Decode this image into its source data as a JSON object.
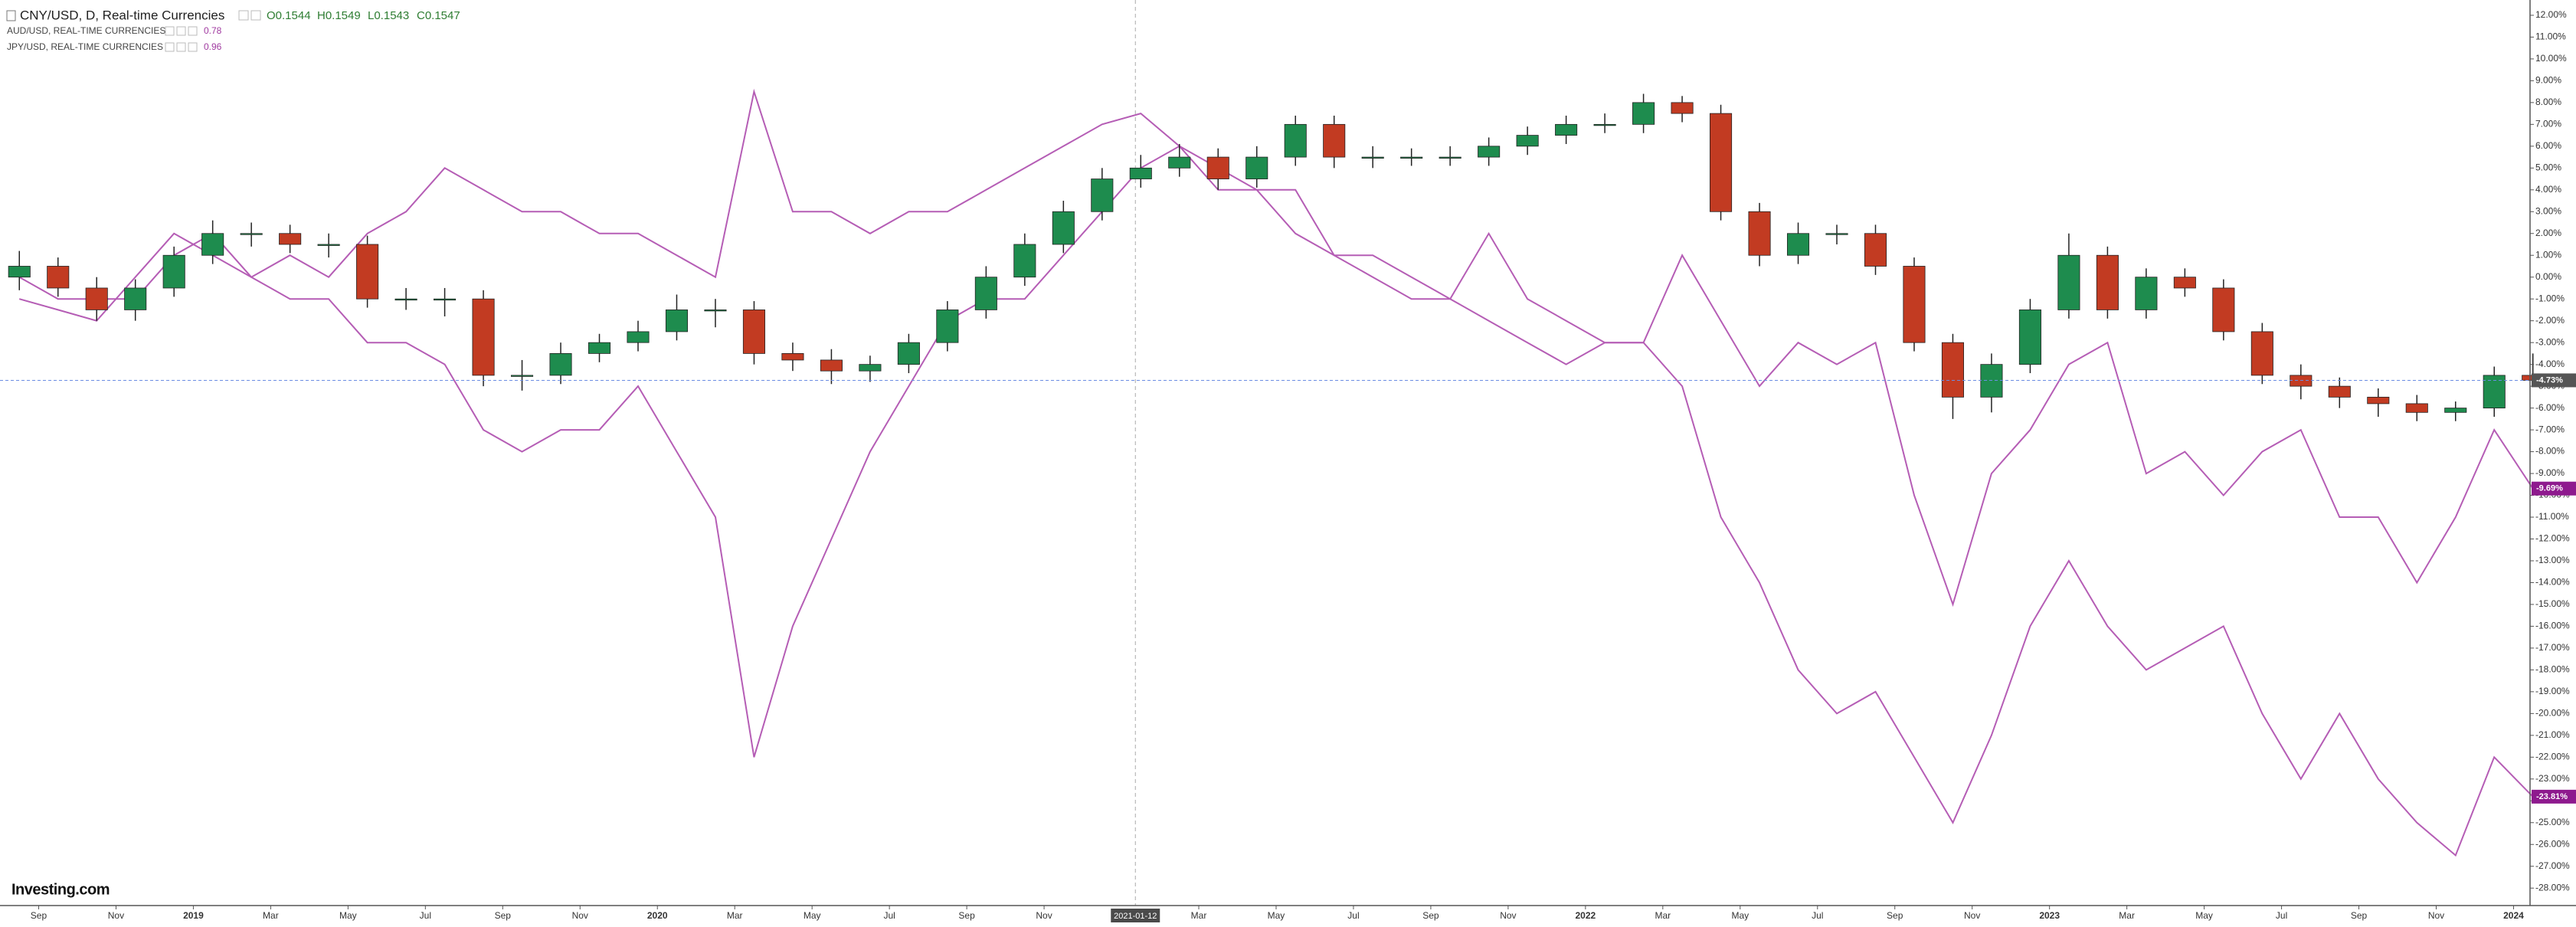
{
  "chart_data": {
    "type": "candlestick",
    "title": "CNY/USD, D, Real-time Currencies",
    "ohlc_labels": [
      "O0.1544",
      "H0.1549",
      "L0.1543",
      "C0.1547"
    ],
    "up_color": "#1e8c4e",
    "down_color": "#c23b22",
    "last_label": "-4.73%",
    "last_label_color": "#555555",
    "crosshair": "2021-01-12",
    "logo": "Investing.com",
    "x": [
      "2018-08",
      "2018-09",
      "2018-10",
      "2018-11",
      "2018-12",
      "2019-01",
      "2019-02",
      "2019-03",
      "2019-04",
      "2019-05",
      "2019-06",
      "2019-07",
      "2019-08",
      "2019-09",
      "2019-10",
      "2019-11",
      "2019-12",
      "2020-01",
      "2020-02",
      "2020-03",
      "2020-04",
      "2020-05",
      "2020-06",
      "2020-07",
      "2020-08",
      "2020-09",
      "2020-10",
      "2020-11",
      "2020-12",
      "2021-01",
      "2021-02",
      "2021-03",
      "2021-04",
      "2021-05",
      "2021-06",
      "2021-07",
      "2021-08",
      "2021-09",
      "2021-10",
      "2021-11",
      "2021-12",
      "2022-01",
      "2022-02",
      "2022-03",
      "2022-04",
      "2022-05",
      "2022-06",
      "2022-07",
      "2022-08",
      "2022-09",
      "2022-10",
      "2022-11",
      "2022-12",
      "2023-01",
      "2023-02",
      "2023-03",
      "2023-04",
      "2023-05",
      "2023-06",
      "2023-07",
      "2023-08",
      "2023-09",
      "2023-10",
      "2023-11",
      "2023-12",
      "2024-01"
    ],
    "candles": [
      [
        0,
        1.2,
        -0.6,
        0.5
      ],
      [
        0.5,
        0.9,
        -0.9,
        -0.5
      ],
      [
        -0.5,
        0,
        -2,
        -1.5
      ],
      [
        -1.5,
        -0.1,
        -2,
        -0.5
      ],
      [
        -0.5,
        1.4,
        -0.9,
        1
      ],
      [
        1,
        2.6,
        0.6,
        2
      ],
      [
        2,
        2.5,
        1.4,
        2
      ],
      [
        2,
        2.4,
        1.1,
        1.5
      ],
      [
        1.5,
        2,
        0.9,
        1.5
      ],
      [
        1.5,
        1.9,
        -1.4,
        -1
      ],
      [
        -1,
        -0.5,
        -1.5,
        -1
      ],
      [
        -1,
        -0.5,
        -1.8,
        -1
      ],
      [
        -1,
        -0.6,
        -5,
        -4.5
      ],
      [
        -4.5,
        -3.8,
        -5.2,
        -4.5
      ],
      [
        -4.5,
        -3,
        -4.9,
        -3.5
      ],
      [
        -3.5,
        -2.6,
        -3.9,
        -3
      ],
      [
        -3,
        -2,
        -3.4,
        -2.5
      ],
      [
        -2.5,
        -0.8,
        -2.9,
        -1.5
      ],
      [
        -1.5,
        -1,
        -2.3,
        -1.5
      ],
      [
        -1.5,
        -1.1,
        -4,
        -3.5
      ],
      [
        -3.5,
        -3,
        -4.3,
        -3.8
      ],
      [
        -3.8,
        -3.3,
        -4.9,
        -4.3
      ],
      [
        -4.3,
        -3.6,
        -4.8,
        -4
      ],
      [
        -4,
        -2.6,
        -4.4,
        -3
      ],
      [
        -3,
        -1.1,
        -3.4,
        -1.5
      ],
      [
        -1.5,
        0.5,
        -1.9,
        0
      ],
      [
        0,
        2,
        -0.4,
        1.5
      ],
      [
        1.5,
        3.5,
        1.1,
        3
      ],
      [
        3,
        5,
        2.6,
        4.5
      ],
      [
        4.5,
        5.6,
        4.1,
        5
      ],
      [
        5,
        6.1,
        4.6,
        5.5
      ],
      [
        5.5,
        5.9,
        4,
        4.5
      ],
      [
        4.5,
        6,
        4.1,
        5.5
      ],
      [
        5.5,
        7.4,
        5.1,
        7
      ],
      [
        7,
        7.4,
        5,
        5.5
      ],
      [
        5.5,
        6,
        5,
        5.5
      ],
      [
        5.5,
        5.9,
        5.1,
        5.5
      ],
      [
        5.5,
        6,
        5.1,
        5.5
      ],
      [
        5.5,
        6.4,
        5.1,
        6
      ],
      [
        6,
        6.9,
        5.6,
        6.5
      ],
      [
        6.5,
        7.4,
        6.1,
        7
      ],
      [
        7,
        7.5,
        6.6,
        7
      ],
      [
        7,
        8.4,
        6.6,
        8
      ],
      [
        8,
        8.3,
        7.1,
        7.5
      ],
      [
        7.5,
        7.9,
        2.6,
        3
      ],
      [
        3,
        3.4,
        0.5,
        1
      ],
      [
        1,
        2.5,
        0.6,
        2
      ],
      [
        2,
        2.4,
        1.5,
        2
      ],
      [
        2,
        2.4,
        0.1,
        0.5
      ],
      [
        0.5,
        0.9,
        -3.4,
        -3
      ],
      [
        -3,
        -2.6,
        -6.5,
        -5.5
      ],
      [
        -5.5,
        -3.5,
        -6.2,
        -4
      ],
      [
        -4,
        -1,
        -4.4,
        -1.5
      ],
      [
        -1.5,
        2,
        -1.9,
        1
      ],
      [
        1,
        1.4,
        -1.9,
        -1.5
      ],
      [
        -1.5,
        0.4,
        -1.9,
        0
      ],
      [
        0,
        0.4,
        -0.9,
        -0.5
      ],
      [
        -0.5,
        -0.1,
        -2.9,
        -2.5
      ],
      [
        -2.5,
        -2.1,
        -4.9,
        -4.5
      ],
      [
        -4.5,
        -4,
        -5.6,
        -5
      ],
      [
        -5,
        -4.6,
        -6,
        -5.5
      ],
      [
        -5.5,
        -5.1,
        -6.4,
        -5.8
      ],
      [
        -5.8,
        -5.4,
        -6.6,
        -6.2
      ],
      [
        -6.2,
        -5.7,
        -6.6,
        -6
      ],
      [
        -6,
        -4.1,
        -6.4,
        -4.5
      ],
      [
        -4.5,
        -3.5,
        -5,
        -4.73
      ]
    ],
    "series": [
      {
        "name": "AUD/USD, REAL-TIME CURRENCIES",
        "price": 0.78,
        "color": "#b55db5",
        "last_label": "-9.69%",
        "last_label_color": "#8e1a8e",
        "values": [
          -1,
          -1.5,
          -2,
          0,
          2,
          1,
          0,
          -1,
          -1,
          -3,
          -3,
          -4,
          -7,
          -8,
          -7,
          -7,
          -5,
          -8,
          -11,
          -22,
          -16,
          -12,
          -8,
          -5,
          -2,
          -1,
          -1,
          1,
          3,
          5,
          6,
          5,
          4,
          4,
          1,
          0,
          -1,
          -1,
          2,
          -1,
          -2,
          -3,
          -3,
          1,
          -2,
          -5,
          -3,
          -4,
          -3,
          -10,
          -15,
          -9,
          -7,
          -4,
          -3,
          -9,
          -8,
          -10,
          -8,
          -7,
          -11,
          -11,
          -14,
          -11,
          -7,
          -9.69
        ]
      },
      {
        "name": "JPY/USD, REAL-TIME CURRENCIES",
        "price": 0.96,
        "color": "#b55db5",
        "last_label": "-23.81%",
        "last_label_color": "#8e1a8e",
        "values": [
          0,
          -1,
          -1,
          -1,
          1,
          2,
          0,
          1,
          0,
          2,
          3,
          5,
          4,
          3,
          3,
          2,
          2,
          1,
          0,
          8.5,
          3,
          3,
          2,
          3,
          3,
          4,
          5,
          6,
          7,
          7.5,
          6,
          4,
          4,
          2,
          1,
          1,
          0,
          -1,
          -2,
          -3,
          -4,
          -3,
          -3,
          -5,
          -11,
          -14,
          -18,
          -20,
          -19,
          -22,
          -25,
          -21,
          -16,
          -13,
          -16,
          -18,
          -17,
          -16,
          -20,
          -23,
          -20,
          -23,
          -25,
          -26.5,
          -22,
          -23.81
        ]
      }
    ],
    "xlim": [
      "2018-08",
      "2024-01-14"
    ],
    "xticks": [
      {
        "value": "2018-09",
        "label": "Sep"
      },
      {
        "value": "2018-11",
        "label": "Nov"
      },
      {
        "value": "2019-01",
        "label": "2019"
      },
      {
        "value": "2019-03",
        "label": "Mar"
      },
      {
        "value": "2019-05",
        "label": "May"
      },
      {
        "value": "2019-07",
        "label": "Jul"
      },
      {
        "value": "2019-09",
        "label": "Sep"
      },
      {
        "value": "2019-11",
        "label": "Nov"
      },
      {
        "value": "2020-01",
        "label": "2020"
      },
      {
        "value": "2020-03",
        "label": "Mar"
      },
      {
        "value": "2020-05",
        "label": "May"
      },
      {
        "value": "2020-07",
        "label": "Jul"
      },
      {
        "value": "2020-09",
        "label": "Sep"
      },
      {
        "value": "2020-11",
        "label": "Nov"
      },
      {
        "value": "2021-03",
        "label": "Mar"
      },
      {
        "value": "2021-05",
        "label": "May"
      },
      {
        "value": "2021-07",
        "label": "Jul"
      },
      {
        "value": "2021-09",
        "label": "Sep"
      },
      {
        "value": "2021-11",
        "label": "Nov"
      },
      {
        "value": "2022-01",
        "label": "2022"
      },
      {
        "value": "2022-03",
        "label": "Mar"
      },
      {
        "value": "2022-05",
        "label": "May"
      },
      {
        "value": "2022-07",
        "label": "Jul"
      },
      {
        "value": "2022-09",
        "label": "Sep"
      },
      {
        "value": "2022-11",
        "label": "Nov"
      },
      {
        "value": "2023-01",
        "label": "2023"
      },
      {
        "value": "2023-03",
        "label": "Mar"
      },
      {
        "value": "2023-05",
        "label": "May"
      },
      {
        "value": "2023-07",
        "label": "Jul"
      },
      {
        "value": "2023-09",
        "label": "Sep"
      },
      {
        "value": "2023-11",
        "label": "Nov"
      },
      {
        "value": "2024-01",
        "label": "2024"
      }
    ],
    "ylim": [
      -28.8,
      12.7
    ],
    "yticks": [
      {
        "value": 12,
        "label": "12.00%"
      },
      {
        "value": 11,
        "label": "11.00%"
      },
      {
        "value": 10,
        "label": "10.00%"
      },
      {
        "value": 9,
        "label": "9.00%"
      },
      {
        "value": 8,
        "label": "8.00%"
      },
      {
        "value": 7,
        "label": "7.00%"
      },
      {
        "value": 6,
        "label": "6.00%"
      },
      {
        "value": 5,
        "label": "5.00%"
      },
      {
        "value": 4,
        "label": "4.00%"
      },
      {
        "value": 3,
        "label": "3.00%"
      },
      {
        "value": 2,
        "label": "2.00%"
      },
      {
        "value": 1,
        "label": "1.00%"
      },
      {
        "value": 0,
        "label": "0.00%"
      },
      {
        "value": -1,
        "label": "-1.00%"
      },
      {
        "value": -2,
        "label": "-2.00%"
      },
      {
        "value": -3,
        "label": "-3.00%"
      },
      {
        "value": -4,
        "label": "-4.00%"
      },
      {
        "value": -5,
        "label": "-5.00%"
      },
      {
        "value": -6,
        "label": "-6.00%"
      },
      {
        "value": -7,
        "label": "-7.00%"
      },
      {
        "value": -8,
        "label": "-8.00%"
      },
      {
        "value": -9,
        "label": "-9.00%"
      },
      {
        "value": -10,
        "label": "-10.00%"
      },
      {
        "value": -11,
        "label": "-11.00%"
      },
      {
        "value": -12,
        "label": "-12.00%"
      },
      {
        "value": -13,
        "label": "-13.00%"
      },
      {
        "value": -14,
        "label": "-14.00%"
      },
      {
        "value": -15,
        "label": "-15.00%"
      },
      {
        "value": -16,
        "label": "-16.00%"
      },
      {
        "value": -17,
        "label": "-17.00%"
      },
      {
        "value": -18,
        "label": "-18.00%"
      },
      {
        "value": -19,
        "label": "-19.00%"
      },
      {
        "value": -20,
        "label": "-20.00%"
      },
      {
        "value": -21,
        "label": "-21.00%"
      },
      {
        "value": -22,
        "label": "-22.00%"
      },
      {
        "value": -23,
        "label": "-23.00%"
      },
      {
        "value": -24,
        "label": "-24.00%"
      },
      {
        "value": -25,
        "label": "-25.00%"
      },
      {
        "value": -26,
        "label": "-26.00%"
      },
      {
        "value": -27,
        "label": "-27.00%"
      },
      {
        "value": -28,
        "label": "-28.00%"
      }
    ],
    "grid": false
  }
}
